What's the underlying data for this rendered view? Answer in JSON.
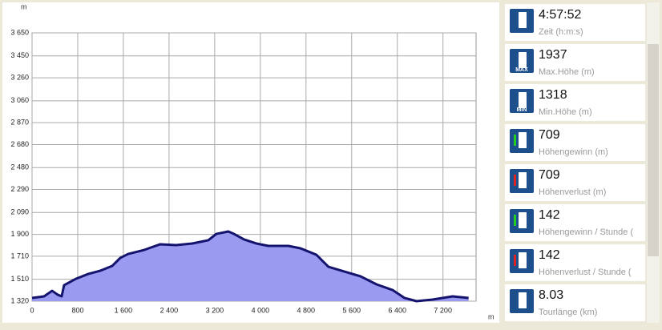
{
  "chart_data": {
    "type": "area",
    "y_label": "m",
    "x_label": "m",
    "x": [
      0,
      210,
      351,
      449,
      519,
      561,
      772,
      982,
      1193,
      1404,
      1544,
      1684,
      1965,
      2246,
      2526,
      2807,
      3088,
      3228,
      3439,
      3537,
      3719,
      3930,
      4140,
      4491,
      4702,
      4982,
      5193,
      5474,
      5754,
      6035,
      6316,
      6526,
      6737,
      7018,
      7368,
      7649
    ],
    "values": [
      1348,
      1362,
      1410,
      1376,
      1362,
      1459,
      1515,
      1556,
      1584,
      1626,
      1695,
      1730,
      1765,
      1814,
      1807,
      1821,
      1849,
      1904,
      1925,
      1904,
      1855,
      1821,
      1800,
      1800,
      1779,
      1723,
      1619,
      1577,
      1536,
      1466,
      1417,
      1348,
      1320,
      1334,
      1362,
      1348
    ],
    "color": "#9a9af0",
    "line_color": "#14146e",
    "grid": true,
    "xlim": [
      0,
      7780
    ],
    "ylim": [
      1320,
      3650
    ],
    "xticks": [
      0,
      800,
      {
        "value": 1600,
        "label": "1 600"
      },
      {
        "value": 2400,
        "label": "2 400"
      },
      {
        "value": 3200,
        "label": "3 200"
      },
      {
        "value": 4000,
        "label": "4 000"
      },
      {
        "value": 4800,
        "label": "4 800"
      },
      {
        "value": 5600,
        "label": "5 600"
      },
      {
        "value": 6400,
        "label": "6 400"
      },
      {
        "value": 7200,
        "label": "7 200"
      }
    ],
    "yticks": [
      {
        "value": 1320,
        "label": "1 320"
      },
      {
        "value": 1510,
        "label": "1 510"
      },
      {
        "value": 1710,
        "label": "1 710"
      },
      {
        "value": 1900,
        "label": "1 900"
      },
      {
        "value": 2090,
        "label": "2 090"
      },
      {
        "value": 2290,
        "label": "2 290"
      },
      {
        "value": 2480,
        "label": "2 480"
      },
      {
        "value": 2680,
        "label": "2 680"
      },
      {
        "value": 2870,
        "label": "2 870"
      },
      {
        "value": 3060,
        "label": "3 060"
      },
      {
        "value": 3260,
        "label": "3 260"
      },
      {
        "value": 3450,
        "label": "3 450"
      },
      {
        "value": 3650,
        "label": "3 650"
      }
    ]
  },
  "panel": {
    "items": [
      {
        "value": "4:57:52",
        "label": "Zeit (h:m:s)"
      },
      {
        "value": "1937",
        "label": "Max.Höhe (m)",
        "icon_text": "MAX"
      },
      {
        "value": "1318",
        "label": "Min.Höhe (m)",
        "icon_text": "MIN"
      },
      {
        "value": "709",
        "label": "Höhengewinn (m)"
      },
      {
        "value": "709",
        "label": "Höhenverlust (m)"
      },
      {
        "value": "142",
        "label": "Höhengewinn  /  Stunde ("
      },
      {
        "value": "142",
        "label": "Höhenverlust  /  Stunde ("
      },
      {
        "value": "8.03",
        "label": "Tourlänge (km)"
      }
    ]
  }
}
